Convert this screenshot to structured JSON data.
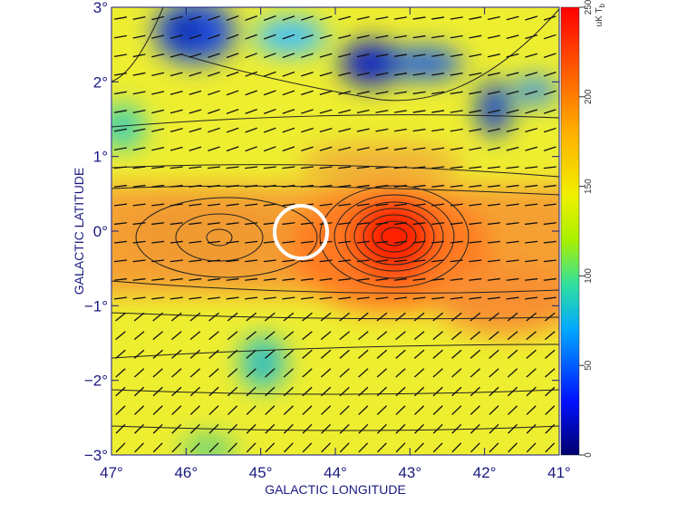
{
  "chart_data": {
    "type": "map",
    "xlabel": "GALACTIC LONGITUDE",
    "ylabel": "GALACTIC LATITUDE",
    "xlim": [
      47,
      41
    ],
    "ylim": [
      -3,
      3
    ],
    "xticks": [
      {
        "value": 47,
        "label": "47°"
      },
      {
        "value": 46,
        "label": "46°"
      },
      {
        "value": 45,
        "label": "45°"
      },
      {
        "value": 44,
        "label": "44°"
      },
      {
        "value": 43,
        "label": "43°"
      },
      {
        "value": 42,
        "label": "42°"
      },
      {
        "value": 41,
        "label": "41°"
      }
    ],
    "yticks": [
      {
        "value": 3,
        "label": "3°"
      },
      {
        "value": 2,
        "label": "2°"
      },
      {
        "value": 1,
        "label": "1°"
      },
      {
        "value": 0,
        "label": "0°"
      },
      {
        "value": -1,
        "label": "−1°"
      },
      {
        "value": -2,
        "label": "−2°"
      },
      {
        "value": -3,
        "label": "−3°"
      }
    ],
    "colorbar": {
      "label": "uK T",
      "label_sub": "b",
      "lim": [
        0,
        250
      ],
      "ticks": [
        0,
        50,
        100,
        150,
        200,
        250
      ]
    }
  }
}
